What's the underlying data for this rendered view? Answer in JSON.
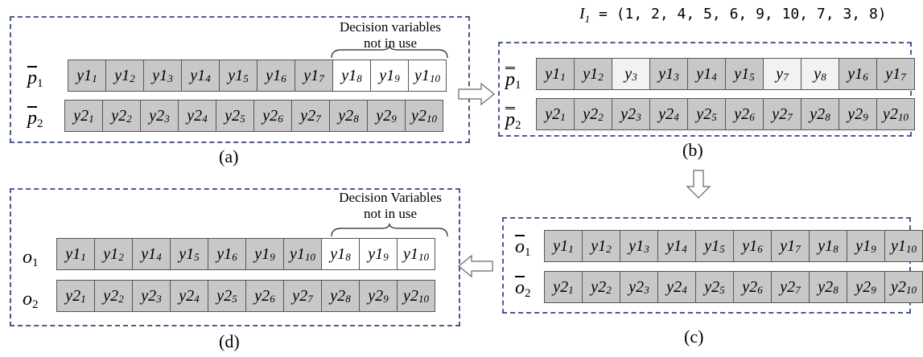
{
  "permutation": {
    "name": "I",
    "sub": "1",
    "equals": " = ",
    "values": "(1, 2, 4, 5, 6, 9, 10, 7, 3, 8)"
  },
  "annotations": {
    "a_line1": "Decision variables",
    "a_line2": "not in use",
    "d_line1": "Decision Variables",
    "d_line2": "not in use"
  },
  "captions": {
    "a": "(a)",
    "b": "(b)",
    "c": "(c)",
    "d": "(d)"
  },
  "labels": {
    "p1": {
      "base": "p",
      "sub": "1"
    },
    "p2": {
      "base": "p",
      "sub": "2"
    },
    "pp1": {
      "base": "p",
      "sub": "1"
    },
    "pp2": {
      "base": "p",
      "sub": "2"
    },
    "oc1": {
      "base": "o",
      "sub": "1"
    },
    "oc2": {
      "base": "o",
      "sub": "2"
    },
    "od1": {
      "base": "o",
      "sub": "1"
    },
    "od2": {
      "base": "o",
      "sub": "2"
    }
  },
  "rows": {
    "a1": [
      {
        "base": "y1",
        "sub": "1"
      },
      {
        "base": "y1",
        "sub": "2"
      },
      {
        "base": "y1",
        "sub": "3"
      },
      {
        "base": "y1",
        "sub": "4"
      },
      {
        "base": "y1",
        "sub": "5"
      },
      {
        "base": "y1",
        "sub": "6"
      },
      {
        "base": "y1",
        "sub": "7"
      },
      {
        "base": "y1",
        "sub": "8",
        "unused": true
      },
      {
        "base": "y1",
        "sub": "9",
        "unused": true
      },
      {
        "base": "y1",
        "sub": "10",
        "unused": true
      }
    ],
    "a2": [
      {
        "base": "y2",
        "sub": "1"
      },
      {
        "base": "y2",
        "sub": "2"
      },
      {
        "base": "y2",
        "sub": "3"
      },
      {
        "base": "y2",
        "sub": "4"
      },
      {
        "base": "y2",
        "sub": "5"
      },
      {
        "base": "y2",
        "sub": "6"
      },
      {
        "base": "y2",
        "sub": "7"
      },
      {
        "base": "y2",
        "sub": "8"
      },
      {
        "base": "y2",
        "sub": "9"
      },
      {
        "base": "y2",
        "sub": "10"
      }
    ],
    "b1": [
      {
        "base": "y1",
        "sub": "1"
      },
      {
        "base": "y1",
        "sub": "2"
      },
      {
        "base": "y",
        "sub": "3",
        "light": true
      },
      {
        "base": "y1",
        "sub": "3"
      },
      {
        "base": "y1",
        "sub": "4"
      },
      {
        "base": "y1",
        "sub": "5"
      },
      {
        "base": "y",
        "sub": "7",
        "light": true
      },
      {
        "base": "y",
        "sub": "8",
        "light": true
      },
      {
        "base": "y1",
        "sub": "6"
      },
      {
        "base": "y1",
        "sub": "7"
      }
    ],
    "b2": [
      {
        "base": "y2",
        "sub": "1"
      },
      {
        "base": "y2",
        "sub": "2"
      },
      {
        "base": "y2",
        "sub": "3"
      },
      {
        "base": "y2",
        "sub": "4"
      },
      {
        "base": "y2",
        "sub": "5"
      },
      {
        "base": "y2",
        "sub": "6"
      },
      {
        "base": "y2",
        "sub": "7"
      },
      {
        "base": "y2",
        "sub": "8"
      },
      {
        "base": "y2",
        "sub": "9"
      },
      {
        "base": "y2",
        "sub": "10"
      }
    ],
    "c1": [
      {
        "base": "y1",
        "sub": "1"
      },
      {
        "base": "y1",
        "sub": "2"
      },
      {
        "base": "y1",
        "sub": "3"
      },
      {
        "base": "y1",
        "sub": "4"
      },
      {
        "base": "y1",
        "sub": "5"
      },
      {
        "base": "y1",
        "sub": "6"
      },
      {
        "base": "y1",
        "sub": "7"
      },
      {
        "base": "y1",
        "sub": "8"
      },
      {
        "base": "y1",
        "sub": "9"
      },
      {
        "base": "y1",
        "sub": "10"
      }
    ],
    "c2": [
      {
        "base": "y2",
        "sub": "1"
      },
      {
        "base": "y2",
        "sub": "2"
      },
      {
        "base": "y2",
        "sub": "3"
      },
      {
        "base": "y2",
        "sub": "4"
      },
      {
        "base": "y2",
        "sub": "5"
      },
      {
        "base": "y2",
        "sub": "6"
      },
      {
        "base": "y2",
        "sub": "7"
      },
      {
        "base": "y2",
        "sub": "8"
      },
      {
        "base": "y2",
        "sub": "9"
      },
      {
        "base": "y2",
        "sub": "10"
      }
    ],
    "d1": [
      {
        "base": "y1",
        "sub": "1"
      },
      {
        "base": "y1",
        "sub": "2"
      },
      {
        "base": "y1",
        "sub": "4"
      },
      {
        "base": "y1",
        "sub": "5"
      },
      {
        "base": "y1",
        "sub": "6"
      },
      {
        "base": "y1",
        "sub": "9"
      },
      {
        "base": "y1",
        "sub": "10"
      },
      {
        "base": "y1",
        "sub": "8",
        "unused": true
      },
      {
        "base": "y1",
        "sub": "9",
        "unused": true
      },
      {
        "base": "y1",
        "sub": "10",
        "unused": true
      }
    ],
    "d2": [
      {
        "base": "y2",
        "sub": "1"
      },
      {
        "base": "y2",
        "sub": "2"
      },
      {
        "base": "y2",
        "sub": "3"
      },
      {
        "base": "y2",
        "sub": "4"
      },
      {
        "base": "y2",
        "sub": "5"
      },
      {
        "base": "y2",
        "sub": "6"
      },
      {
        "base": "y2",
        "sub": "7"
      },
      {
        "base": "y2",
        "sub": "8"
      },
      {
        "base": "y2",
        "sub": "9"
      },
      {
        "base": "y2",
        "sub": "10"
      }
    ]
  }
}
